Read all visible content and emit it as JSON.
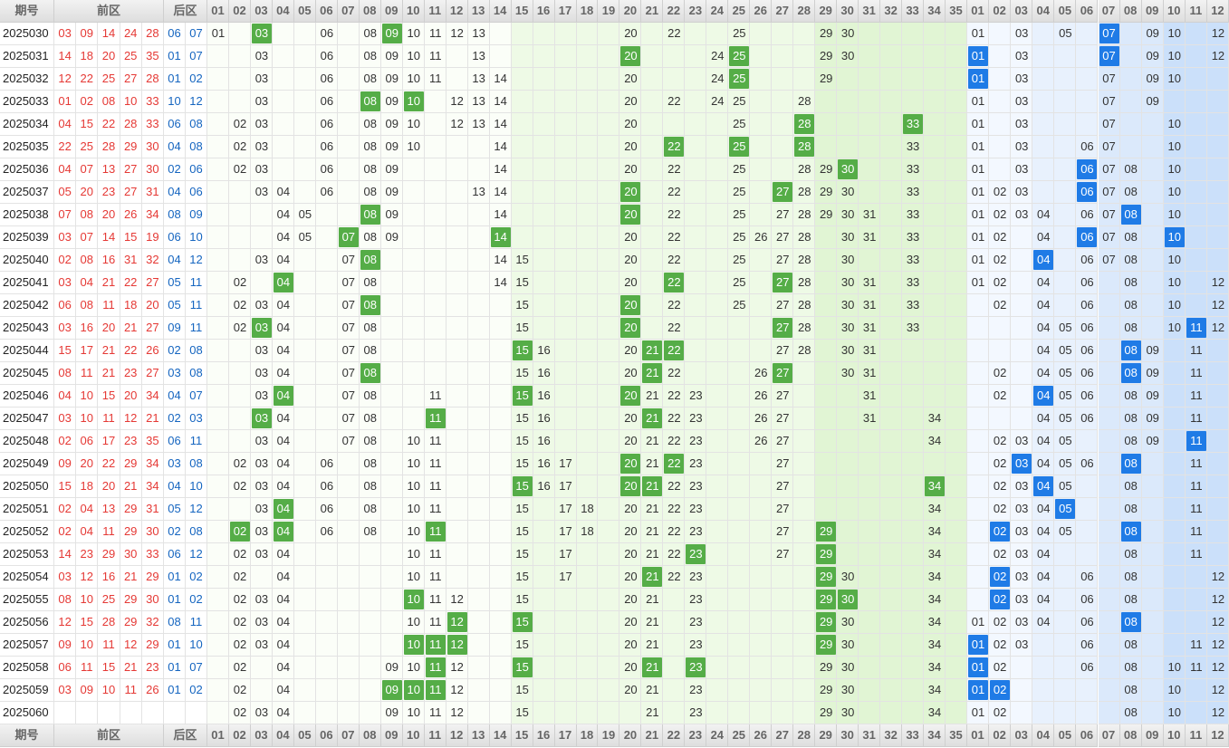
{
  "header": {
    "issue": "期号",
    "front": "前区",
    "back": "后区",
    "front_cols": [
      "01",
      "02",
      "03",
      "04",
      "05",
      "06",
      "07",
      "08",
      "09",
      "10",
      "11",
      "12",
      "13",
      "14",
      "15",
      "16",
      "17",
      "18",
      "19",
      "20",
      "21",
      "22",
      "23",
      "24",
      "25",
      "26",
      "27",
      "28",
      "29",
      "30",
      "31",
      "32",
      "33",
      "34",
      "35"
    ],
    "back_cols": [
      "01",
      "02",
      "03",
      "04",
      "05",
      "06",
      "07",
      "08",
      "09",
      "10",
      "11",
      "12"
    ]
  },
  "rows": [
    {
      "issue": "2025030",
      "front": [
        "03",
        "09",
        "14",
        "24",
        "28"
      ],
      "back": [
        "06",
        "07"
      ],
      "front_trend": [
        "01",
        "03",
        "06",
        "08",
        "09",
        "10",
        "11",
        "12",
        "13",
        "20",
        "22",
        "25",
        "29",
        "30"
      ],
      "front_hits": [
        1,
        4
      ],
      "back_trend": [
        "01",
        "03",
        "05",
        "07",
        "09",
        "10",
        "12"
      ],
      "back_hits": [
        3
      ]
    },
    {
      "issue": "2025031",
      "front": [
        "14",
        "18",
        "20",
        "25",
        "35"
      ],
      "back": [
        "01",
        "07"
      ],
      "front_trend": [
        "03",
        "06",
        "08",
        "09",
        "10",
        "11",
        "13",
        "20",
        "24",
        "25",
        "29",
        "30"
      ],
      "front_hits": [
        7,
        9
      ],
      "back_trend": [
        "01",
        "03",
        "07",
        "09",
        "10",
        "12"
      ],
      "back_hits": [
        0,
        2
      ]
    },
    {
      "issue": "2025032",
      "front": [
        "12",
        "22",
        "25",
        "27",
        "28"
      ],
      "back": [
        "01",
        "02"
      ],
      "front_trend": [
        "03",
        "06",
        "08",
        "09",
        "10",
        "11",
        "13",
        "14",
        "20",
        "24",
        "25",
        "29"
      ],
      "front_hits": [
        10
      ],
      "back_trend": [
        "01",
        "03",
        "07",
        "09",
        "10"
      ],
      "back_hits": [
        0
      ]
    },
    {
      "issue": "2025033",
      "front": [
        "01",
        "02",
        "08",
        "10",
        "33"
      ],
      "back": [
        "10",
        "12"
      ],
      "front_trend": [
        "03",
        "06",
        "08",
        "09",
        "10",
        "12",
        "13",
        "14",
        "20",
        "22",
        "24",
        "25",
        "28"
      ],
      "front_hits": [
        2,
        4
      ],
      "back_trend": [
        "01",
        "03",
        "07",
        "09"
      ],
      "back_hits": []
    },
    {
      "issue": "2025034",
      "front": [
        "04",
        "15",
        "22",
        "28",
        "33"
      ],
      "back": [
        "06",
        "08"
      ],
      "front_trend": [
        "02",
        "03",
        "06",
        "08",
        "09",
        "10",
        "12",
        "13",
        "14",
        "20",
        "25",
        "28",
        "33"
      ],
      "front_hits": [
        11,
        12
      ],
      "back_trend": [
        "01",
        "03",
        "07",
        "10"
      ],
      "back_hits": []
    },
    {
      "issue": "2025035",
      "front": [
        "22",
        "25",
        "28",
        "29",
        "30"
      ],
      "back": [
        "04",
        "08"
      ],
      "front_trend": [
        "02",
        "03",
        "06",
        "08",
        "09",
        "10",
        "14",
        "20",
        "22",
        "25",
        "28",
        "33"
      ],
      "front_hits": [
        8,
        9,
        10
      ],
      "back_trend": [
        "01",
        "03",
        "06",
        "07",
        "10"
      ],
      "back_hits": []
    },
    {
      "issue": "2025036",
      "front": [
        "04",
        "07",
        "13",
        "27",
        "30"
      ],
      "back": [
        "02",
        "06"
      ],
      "front_trend": [
        "02",
        "03",
        "06",
        "08",
        "09",
        "14",
        "20",
        "22",
        "25",
        "28",
        "29",
        "30",
        "33"
      ],
      "front_hits": [
        11
      ],
      "back_trend": [
        "01",
        "03",
        "06",
        "07",
        "08",
        "10"
      ],
      "back_hits": [
        2
      ]
    },
    {
      "issue": "2025037",
      "front": [
        "05",
        "20",
        "23",
        "27",
        "31"
      ],
      "back": [
        "04",
        "06"
      ],
      "front_trend": [
        "03",
        "04",
        "06",
        "08",
        "09",
        "13",
        "14",
        "20",
        "22",
        "25",
        "27",
        "28",
        "29",
        "30",
        "33"
      ],
      "front_hits": [
        7,
        10
      ],
      "back_trend": [
        "01",
        "02",
        "03",
        "06",
        "07",
        "08",
        "10"
      ],
      "back_hits": [
        3
      ]
    },
    {
      "issue": "2025038",
      "front": [
        "07",
        "08",
        "20",
        "26",
        "34"
      ],
      "back": [
        "08",
        "09"
      ],
      "front_trend": [
        "04",
        "05",
        "08",
        "09",
        "14",
        "20",
        "22",
        "25",
        "27",
        "28",
        "29",
        "30",
        "31",
        "33"
      ],
      "front_hits": [
        2,
        5
      ],
      "back_trend": [
        "01",
        "02",
        "03",
        "04",
        "06",
        "07",
        "08",
        "10"
      ],
      "back_hits": [
        6
      ]
    },
    {
      "issue": "2025039",
      "front": [
        "03",
        "07",
        "14",
        "15",
        "19"
      ],
      "back": [
        "06",
        "10"
      ],
      "front_trend": [
        "04",
        "05",
        "07",
        "08",
        "09",
        "14",
        "20",
        "22",
        "25",
        "26",
        "27",
        "28",
        "30",
        "31",
        "33"
      ],
      "front_hits": [
        2,
        5
      ],
      "back_trend": [
        "01",
        "02",
        "04",
        "06",
        "07",
        "08",
        "10"
      ],
      "back_hits": [
        3,
        6
      ]
    },
    {
      "issue": "2025040",
      "front": [
        "02",
        "08",
        "16",
        "31",
        "32"
      ],
      "back": [
        "04",
        "12"
      ],
      "front_trend": [
        "03",
        "04",
        "07",
        "08",
        "14",
        "15",
        "20",
        "22",
        "25",
        "27",
        "28",
        "30",
        "33"
      ],
      "front_hits": [
        3
      ],
      "back_trend": [
        "01",
        "02",
        "04",
        "06",
        "07",
        "08",
        "10"
      ],
      "back_hits": [
        2
      ]
    },
    {
      "issue": "2025041",
      "front": [
        "03",
        "04",
        "21",
        "22",
        "27"
      ],
      "back": [
        "05",
        "11"
      ],
      "front_trend": [
        "02",
        "04",
        "07",
        "08",
        "14",
        "15",
        "20",
        "22",
        "25",
        "27",
        "28",
        "30",
        "31",
        "33"
      ],
      "front_hits": [
        1,
        7,
        9
      ],
      "back_trend": [
        "01",
        "02",
        "04",
        "06",
        "08",
        "10",
        "12"
      ],
      "back_hits": []
    },
    {
      "issue": "2025042",
      "front": [
        "06",
        "08",
        "11",
        "18",
        "20"
      ],
      "back": [
        "05",
        "11"
      ],
      "front_trend": [
        "02",
        "03",
        "04",
        "07",
        "08",
        "15",
        "20",
        "22",
        "25",
        "27",
        "28",
        "30",
        "31",
        "33"
      ],
      "front_hits": [
        4,
        6
      ],
      "back_trend": [
        "02",
        "04",
        "06",
        "08",
        "10",
        "12"
      ],
      "back_hits": []
    },
    {
      "issue": "2025043",
      "front": [
        "03",
        "16",
        "20",
        "21",
        "27"
      ],
      "back": [
        "09",
        "11"
      ],
      "front_trend": [
        "02",
        "03",
        "04",
        "07",
        "08",
        "15",
        "20",
        "22",
        "27",
        "28",
        "30",
        "31",
        "33"
      ],
      "front_hits": [
        1,
        6,
        8
      ],
      "back_trend": [
        "04",
        "05",
        "06",
        "08",
        "10",
        "11",
        "12"
      ],
      "back_hits": [
        5
      ]
    },
    {
      "issue": "2025044",
      "front": [
        "15",
        "17",
        "21",
        "22",
        "26"
      ],
      "back": [
        "02",
        "08"
      ],
      "front_trend": [
        "03",
        "04",
        "07",
        "08",
        "15",
        "16",
        "20",
        "21",
        "22",
        "27",
        "28",
        "30",
        "31"
      ],
      "front_hits": [
        4,
        7,
        8
      ],
      "back_trend": [
        "04",
        "05",
        "06",
        "08",
        "09",
        "11"
      ],
      "back_hits": [
        3
      ]
    },
    {
      "issue": "2025045",
      "front": [
        "08",
        "11",
        "21",
        "23",
        "27"
      ],
      "back": [
        "03",
        "08"
      ],
      "front_trend": [
        "03",
        "04",
        "07",
        "08",
        "15",
        "16",
        "20",
        "21",
        "22",
        "26",
        "27",
        "30",
        "31"
      ],
      "front_hits": [
        3,
        7,
        10
      ],
      "back_trend": [
        "02",
        "04",
        "05",
        "06",
        "08",
        "09",
        "11"
      ],
      "back_hits": [
        4
      ]
    },
    {
      "issue": "2025046",
      "front": [
        "04",
        "10",
        "15",
        "20",
        "34"
      ],
      "back": [
        "04",
        "07"
      ],
      "front_trend": [
        "03",
        "04",
        "07",
        "08",
        "11",
        "15",
        "16",
        "20",
        "21",
        "22",
        "23",
        "26",
        "27",
        "31"
      ],
      "front_hits": [
        1,
        5,
        7
      ],
      "back_trend": [
        "02",
        "04",
        "05",
        "06",
        "08",
        "09",
        "11"
      ],
      "back_hits": [
        1
      ]
    },
    {
      "issue": "2025047",
      "front": [
        "03",
        "10",
        "11",
        "12",
        "21"
      ],
      "back": [
        "02",
        "03"
      ],
      "front_trend": [
        "03",
        "04",
        "07",
        "08",
        "11",
        "15",
        "16",
        "20",
        "21",
        "22",
        "23",
        "26",
        "27",
        "31",
        "34"
      ],
      "front_hits": [
        0,
        4,
        8
      ],
      "back_trend": [
        "04",
        "05",
        "06",
        "08",
        "09",
        "11"
      ],
      "back_hits": []
    },
    {
      "issue": "2025048",
      "front": [
        "02",
        "06",
        "17",
        "23",
        "35"
      ],
      "back": [
        "06",
        "11"
      ],
      "front_trend": [
        "03",
        "04",
        "07",
        "08",
        "10",
        "11",
        "15",
        "16",
        "20",
        "21",
        "22",
        "23",
        "26",
        "27",
        "34"
      ],
      "front_hits": [],
      "back_trend": [
        "02",
        "03",
        "04",
        "05",
        "08",
        "09",
        "11"
      ],
      "back_hits": [
        6
      ]
    },
    {
      "issue": "2025049",
      "front": [
        "09",
        "20",
        "22",
        "29",
        "34"
      ],
      "back": [
        "03",
        "08"
      ],
      "front_trend": [
        "02",
        "03",
        "04",
        "06",
        "08",
        "10",
        "11",
        "15",
        "16",
        "17",
        "20",
        "21",
        "22",
        "23",
        "27"
      ],
      "front_hits": [
        10,
        12
      ],
      "back_trend": [
        "02",
        "03",
        "04",
        "05",
        "06",
        "08",
        "11"
      ],
      "back_hits": [
        1,
        5
      ]
    },
    {
      "issue": "2025050",
      "front": [
        "15",
        "18",
        "20",
        "21",
        "34"
      ],
      "back": [
        "04",
        "10"
      ],
      "front_trend": [
        "02",
        "03",
        "04",
        "06",
        "08",
        "10",
        "11",
        "15",
        "16",
        "17",
        "20",
        "21",
        "22",
        "23",
        "27",
        "34"
      ],
      "front_hits": [
        7,
        10,
        11,
        15
      ],
      "back_trend": [
        "02",
        "03",
        "04",
        "05",
        "08",
        "11"
      ],
      "back_hits": [
        2
      ]
    },
    {
      "issue": "2025051",
      "front": [
        "02",
        "04",
        "13",
        "29",
        "31"
      ],
      "back": [
        "05",
        "12"
      ],
      "front_trend": [
        "03",
        "04",
        "06",
        "08",
        "10",
        "11",
        "15",
        "17",
        "18",
        "20",
        "21",
        "22",
        "23",
        "27",
        "34"
      ],
      "front_hits": [
        1
      ],
      "back_trend": [
        "02",
        "03",
        "04",
        "05",
        "08",
        "11"
      ],
      "back_hits": [
        3
      ]
    },
    {
      "issue": "2025052",
      "front": [
        "02",
        "04",
        "11",
        "29",
        "30"
      ],
      "back": [
        "02",
        "08"
      ],
      "front_trend": [
        "02",
        "03",
        "04",
        "06",
        "08",
        "10",
        "11",
        "15",
        "17",
        "18",
        "20",
        "21",
        "22",
        "23",
        "27",
        "29",
        "34"
      ],
      "front_hits": [
        0,
        2,
        6,
        15
      ],
      "back_trend": [
        "02",
        "03",
        "04",
        "05",
        "08",
        "11"
      ],
      "back_hits": [
        0,
        4
      ]
    },
    {
      "issue": "2025053",
      "front": [
        "14",
        "23",
        "29",
        "30",
        "33"
      ],
      "back": [
        "06",
        "12"
      ],
      "front_trend": [
        "02",
        "03",
        "04",
        "10",
        "11",
        "15",
        "17",
        "20",
        "21",
        "22",
        "23",
        "27",
        "29",
        "34"
      ],
      "front_hits": [
        10,
        12
      ],
      "back_trend": [
        "02",
        "03",
        "04",
        "08",
        "11"
      ],
      "back_hits": []
    },
    {
      "issue": "2025054",
      "front": [
        "03",
        "12",
        "16",
        "21",
        "29"
      ],
      "back": [
        "01",
        "02"
      ],
      "front_trend": [
        "02",
        "04",
        "10",
        "11",
        "15",
        "17",
        "20",
        "21",
        "22",
        "23",
        "29",
        "30",
        "34"
      ],
      "front_hits": [
        7,
        10
      ],
      "back_trend": [
        "02",
        "03",
        "04",
        "06",
        "08",
        "12"
      ],
      "back_hits": [
        0
      ]
    },
    {
      "issue": "2025055",
      "front": [
        "08",
        "10",
        "25",
        "29",
        "30"
      ],
      "back": [
        "01",
        "02"
      ],
      "front_trend": [
        "02",
        "03",
        "04",
        "10",
        "11",
        "12",
        "15",
        "20",
        "21",
        "23",
        "29",
        "30",
        "34"
      ],
      "front_hits": [
        3,
        10,
        11
      ],
      "back_trend": [
        "02",
        "03",
        "04",
        "06",
        "08",
        "12"
      ],
      "back_hits": [
        0
      ]
    },
    {
      "issue": "2025056",
      "front": [
        "12",
        "15",
        "28",
        "29",
        "32"
      ],
      "back": [
        "08",
        "11"
      ],
      "front_trend": [
        "02",
        "03",
        "04",
        "10",
        "11",
        "12",
        "15",
        "20",
        "21",
        "23",
        "29",
        "30",
        "34"
      ],
      "front_hits": [
        5,
        6,
        10
      ],
      "back_trend": [
        "01",
        "02",
        "03",
        "04",
        "06",
        "08",
        "12"
      ],
      "back_hits": [
        5
      ]
    },
    {
      "issue": "2025057",
      "front": [
        "09",
        "10",
        "11",
        "12",
        "29"
      ],
      "back": [
        "01",
        "10"
      ],
      "front_trend": [
        "02",
        "03",
        "04",
        "10",
        "11",
        "12",
        "15",
        "20",
        "21",
        "23",
        "29",
        "30",
        "34"
      ],
      "front_hits": [
        3,
        4,
        5,
        10
      ],
      "back_trend": [
        "01",
        "02",
        "03",
        "06",
        "08",
        "11",
        "12"
      ],
      "back_hits": [
        0
      ]
    },
    {
      "issue": "2025058",
      "front": [
        "06",
        "11",
        "15",
        "21",
        "23"
      ],
      "back": [
        "01",
        "07"
      ],
      "front_trend": [
        "02",
        "04",
        "09",
        "10",
        "11",
        "12",
        "15",
        "20",
        "21",
        "23",
        "29",
        "30",
        "34"
      ],
      "front_hits": [
        4,
        6,
        8,
        9
      ],
      "back_trend": [
        "01",
        "02",
        "06",
        "08",
        "10",
        "11",
        "12"
      ],
      "back_hits": [
        0
      ]
    },
    {
      "issue": "2025059",
      "front": [
        "03",
        "09",
        "10",
        "11",
        "26"
      ],
      "back": [
        "01",
        "02"
      ],
      "front_trend": [
        "02",
        "04",
        "09",
        "10",
        "11",
        "12",
        "15",
        "20",
        "21",
        "23",
        "29",
        "30",
        "34"
      ],
      "front_hits": [
        2,
        3,
        4
      ],
      "back_trend": [
        "01",
        "02",
        "08",
        "10",
        "12"
      ],
      "back_hits": [
        0,
        1
      ]
    },
    {
      "issue": "2025060",
      "front": [],
      "back": [],
      "front_trend": [
        "02",
        "03",
        "04",
        "09",
        "10",
        "11",
        "12",
        "15",
        "21",
        "23",
        "29",
        "30",
        "34"
      ],
      "front_hits": [],
      "back_trend": [
        "01",
        "02",
        "08",
        "10",
        "12"
      ],
      "back_hits": []
    }
  ]
}
